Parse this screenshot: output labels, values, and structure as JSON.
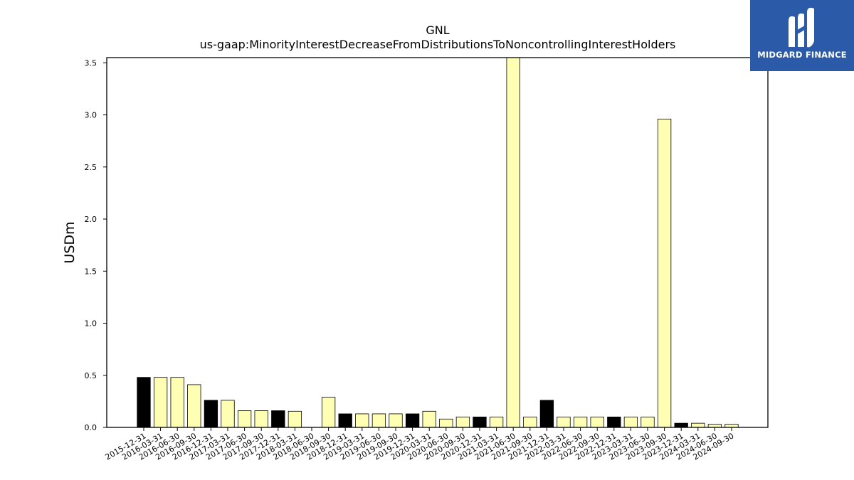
{
  "chart_data": {
    "type": "bar",
    "title": "GNL",
    "subtitle": "us-gaap:MinorityInterestDecreaseFromDistributionsToNoncontrollingInterestHolders",
    "xlabel": "",
    "ylabel": "USDm",
    "ylim": [
      0,
      3.55
    ],
    "yticks": [
      "0.0",
      "0.5",
      "1.0",
      "1.5",
      "2.0",
      "2.5",
      "3.0",
      "3.5"
    ],
    "grid": false,
    "legend": "none",
    "colors": {
      "annual": "#000000",
      "quarterly": "#ffffb3",
      "edge": "#000000"
    },
    "categories": [
      "2015-12-31",
      "2016-03-31",
      "2016-06-30",
      "2016-09-30",
      "2016-12-31",
      "2017-03-31",
      "2017-06-30",
      "2017-09-30",
      "2017-12-31",
      "2018-03-31",
      "2018-06-30",
      "2018-09-30",
      "2018-12-31",
      "2019-03-31",
      "2019-06-30",
      "2019-09-30",
      "2019-12-31",
      "2020-03-31",
      "2020-06-30",
      "2020-09-30",
      "2020-12-31",
      "2021-03-31",
      "2021-06-30",
      "2021-09-30",
      "2021-12-31",
      "2022-03-31",
      "2022-06-30",
      "2022-09-30",
      "2022-12-31",
      "2023-03-31",
      "2023-06-30",
      "2023-09-30",
      "2023-12-31",
      "2024-03-31",
      "2024-06-30",
      "2024-09-30"
    ],
    "values": [
      0.48,
      0.48,
      0.48,
      0.41,
      0.26,
      0.26,
      0.16,
      0.16,
      0.16,
      0.155,
      0.0,
      0.29,
      0.13,
      0.13,
      0.13,
      0.13,
      0.13,
      0.155,
      0.08,
      0.1,
      0.1,
      0.1,
      3.55,
      0.1,
      0.26,
      0.1,
      0.1,
      0.1,
      0.1,
      0.1,
      0.1,
      2.96,
      0.04,
      0.04,
      0.03,
      0.03
    ],
    "annual_flags": [
      true,
      false,
      false,
      false,
      true,
      false,
      false,
      false,
      true,
      false,
      false,
      false,
      true,
      false,
      false,
      false,
      true,
      false,
      false,
      false,
      true,
      false,
      false,
      false,
      true,
      false,
      false,
      false,
      true,
      false,
      false,
      false,
      true,
      false,
      false,
      false
    ]
  },
  "logo": {
    "text": "MIDGARD FINANCE",
    "icon": "midgard-logo-icon",
    "background": "#2b5aa8"
  }
}
